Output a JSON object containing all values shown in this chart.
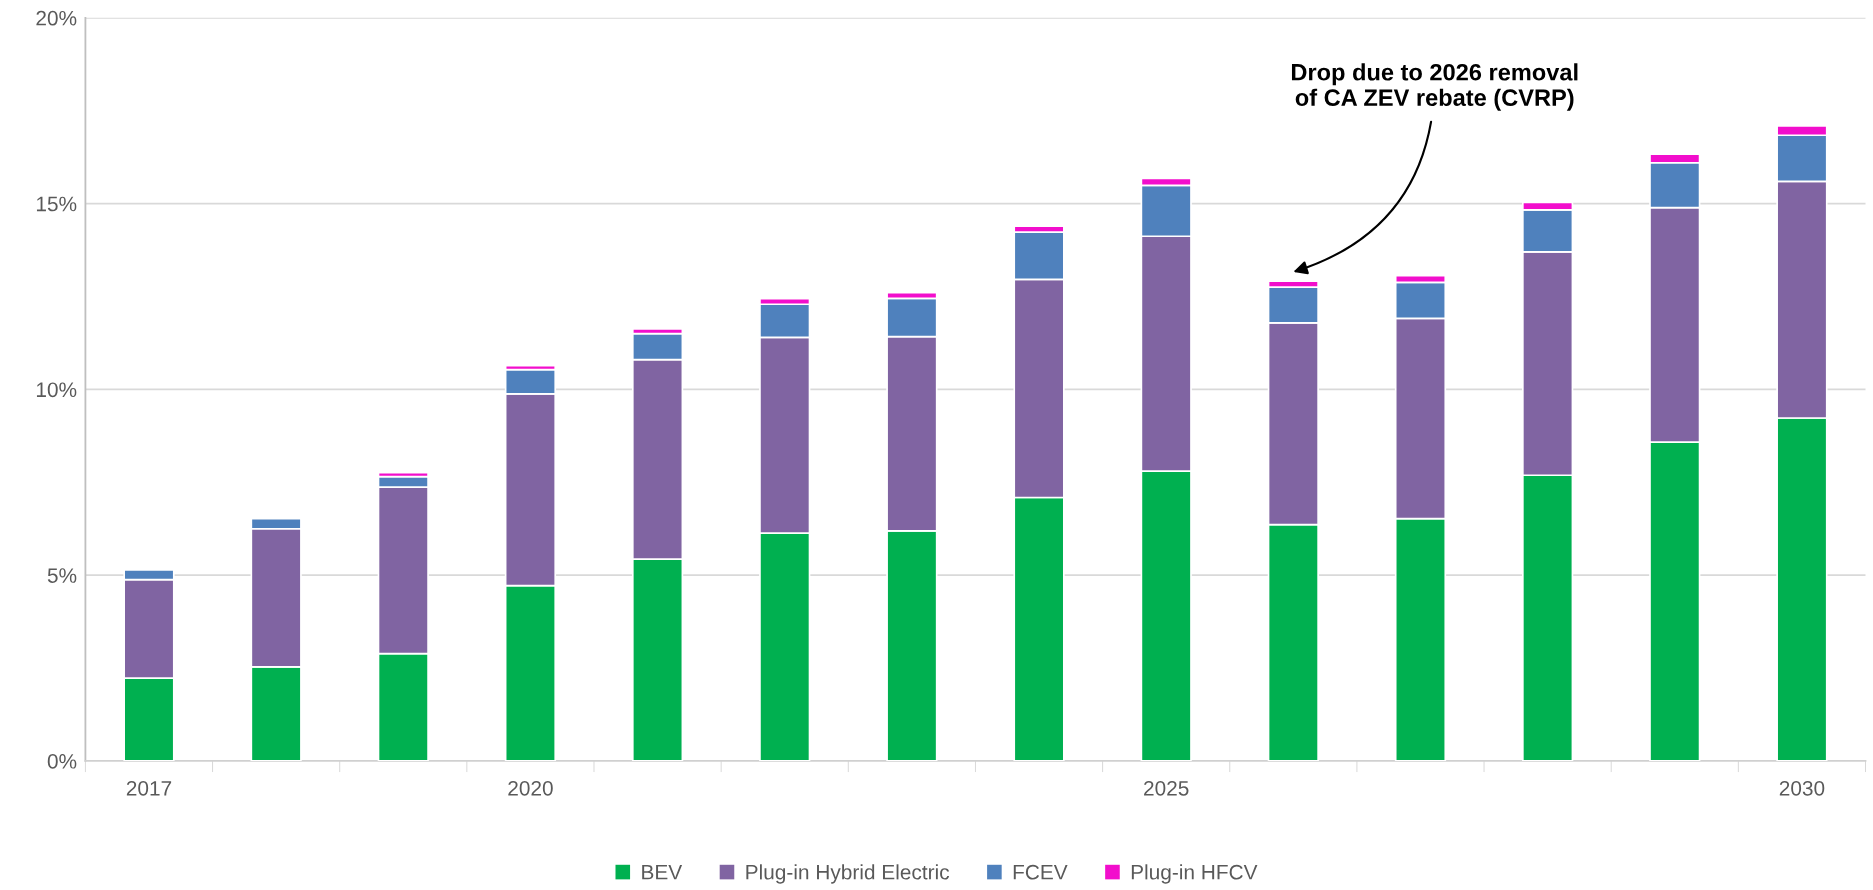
{
  "chart_data": {
    "type": "bar",
    "stacked": true,
    "categories": [
      "2017",
      null,
      null,
      "2020",
      null,
      null,
      null,
      null,
      "2025",
      null,
      null,
      null,
      null,
      "2030"
    ],
    "series": [
      {
        "name": "BEV",
        "color": "#00b050",
        "values": [
          2.23,
          2.53,
          2.89,
          4.72,
          5.43,
          6.13,
          6.19,
          7.09,
          7.8,
          6.36,
          6.52,
          7.69,
          8.58,
          9.23
        ]
      },
      {
        "name": "Plug-in Hybrid Electric",
        "color": "#8064a2",
        "values": [
          2.65,
          3.72,
          4.48,
          5.16,
          5.37,
          5.27,
          5.23,
          5.87,
          6.32,
          5.43,
          5.39,
          6.01,
          6.31,
          6.37
        ]
      },
      {
        "name": "FCEV",
        "color": "#4f81bd",
        "values": [
          0.26,
          0.27,
          0.28,
          0.65,
          0.7,
          0.89,
          1.03,
          1.27,
          1.37,
          0.96,
          0.97,
          1.13,
          1.21,
          1.24
        ]
      },
      {
        "name": "Plug-in HFCV",
        "color": "#f20ecc",
        "values": [
          null,
          null,
          0.11,
          0.11,
          0.13,
          0.15,
          0.15,
          0.16,
          0.19,
          0.16,
          0.18,
          0.2,
          0.23,
          0.25
        ]
      }
    ],
    "ylim": [
      0,
      20
    ],
    "yticks": [
      {
        "value": 0,
        "label": "0%"
      },
      {
        "value": 5,
        "label": "5%"
      },
      {
        "value": 10,
        "label": "10%"
      },
      {
        "value": 15,
        "label": "15%"
      },
      {
        "value": 20,
        "label": "20%"
      }
    ],
    "grid": "y",
    "legend": "bottom",
    "annotations": [
      "Drop due to 2026 removal\nof CA ZEV rebate (CVRP)"
    ]
  }
}
